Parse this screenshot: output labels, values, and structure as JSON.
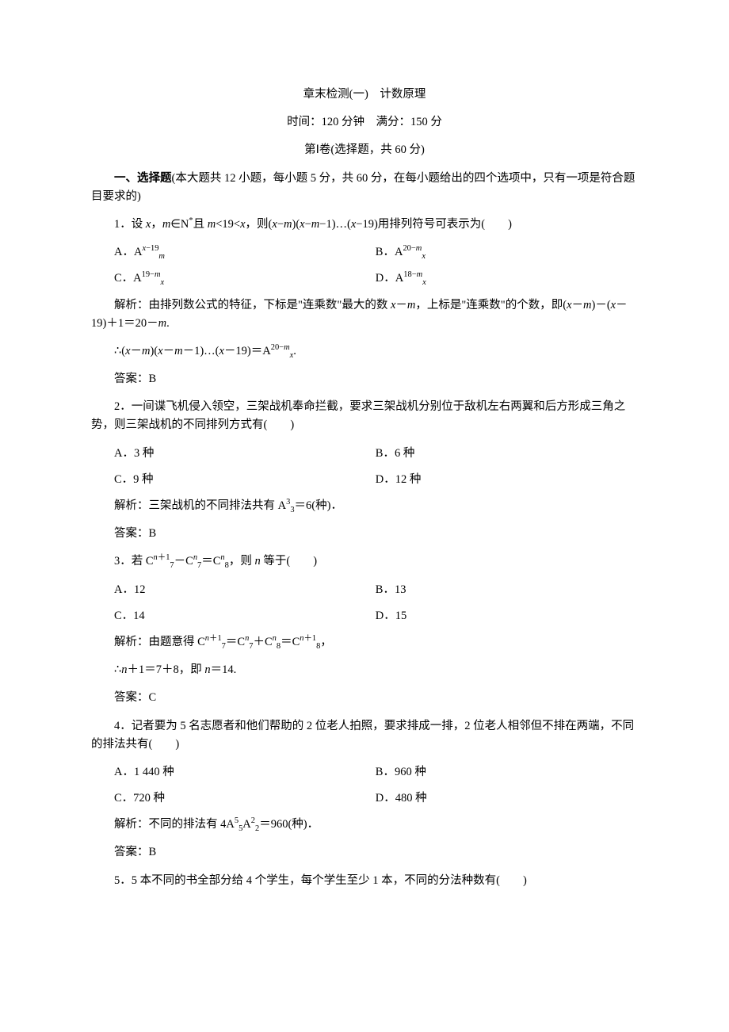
{
  "title": "章末检测(一)　计数原理",
  "subtitle": "时间：120 分钟　满分：150 分",
  "section_header": "第Ⅰ卷(选择题，共 60 分)",
  "section_intro_a": "一、选择题",
  "section_intro_b": "(本大题共 12 小题，每小题 5 分，共 60 分，在每小题给出的四个选项中，只有一项是符合题目要求的)",
  "q1": {
    "stem_a": "1．设 ",
    "x": "x",
    "stem_b": "，",
    "m": "m",
    "stem_c": "∈N",
    "star": "*",
    "stem_d": "且 ",
    "stem_e": "<19<",
    "stem_f": "，则(",
    "stem_g": "−",
    "stem_h": ")(",
    "stem_i": "−1)…(",
    "stem_j": "−19)用排列符号可表示为(　　)",
    "A_pre": "A．A",
    "A_sup_a": "x",
    "A_sup_b": "−19",
    "A_sub": "m",
    "B_pre": "B．A",
    "B_sup_a": "20−",
    "B_sup_b": "m",
    "B_sub": "x",
    "C_pre": "C．A",
    "C_sup_a": "19−",
    "C_sup_b": "m",
    "C_sub": "x",
    "D_pre": "D．A",
    "D_sup_a": "18−",
    "D_sup_b": "m",
    "D_sub": "x",
    "expl1_a": "解析：由排列数公式的特征，下标是\"连乘数\"最大的数 ",
    "expl1_b": "－",
    "expl1_c": "，上标是\"连乘数\"的个数，即(",
    "expl1_d": "－",
    "expl1_e": ")－(",
    "expl1_f": "－19)＋1＝20－",
    "expl1_g": ".",
    "expl2_a": "∴(",
    "expl2_b": "－",
    "expl2_c": ")(",
    "expl2_d": "－1)…(",
    "expl2_e": "－19)＝A",
    "ans": "答案：B"
  },
  "q2": {
    "stem": "2．一间谍飞机侵入领空，三架战机奉命拦截，要求三架战机分别位于敌机左右两翼和后方形成三角之势，则三架战机的不同排列方式有(　　)",
    "A": "A．3 种",
    "B": "B．6 种",
    "C": "C．9 种",
    "D": "D．12 种",
    "expl_a": "解析：三架战机的不同排法共有 A",
    "expl_sup": "3",
    "expl_sub": "3",
    "expl_b": "＝6(种)．",
    "ans": "答案：B"
  },
  "q3": {
    "stem_a": "3．若 C",
    "sup1a": "n",
    "sup1b": "＋1",
    "sub1": "7",
    "stem_b": "－C",
    "sup2": "n",
    "sub2": "7",
    "stem_c": "＝C",
    "sup3": "n",
    "sub3": "8",
    "stem_d": "，则 ",
    "stem_e": " 等于(　　)",
    "A": "A．12",
    "B": "B．13",
    "C": "C．14",
    "D": "D．15",
    "expl_a": "解析：由题意得 C",
    "expl_b": "＝C",
    "expl_c": "＋C",
    "expl_d": "＝C",
    "expl_sup4a": "n",
    "expl_sup4b": "＋1",
    "expl_sub4": "8",
    "expl_e": "，",
    "expl2_a": "∴",
    "expl2_b": "＋1＝7＋8，即 ",
    "expl2_c": "＝14.",
    "ans": "答案：C"
  },
  "q4": {
    "stem": "4．记者要为 5 名志愿者和他们帮助的 2 位老人拍照，要求排成一排，2 位老人相邻但不排在两端，不同的排法共有(　　)",
    "A": "A．1 440 种",
    "B": "B．960 种",
    "C": "C．720 种",
    "D": "D．480 种",
    "expl_a": "解析：不同的排法有 4A",
    "expl_sup1": "5",
    "expl_sub1": "5",
    "expl_b": "A",
    "expl_sup2": "2",
    "expl_sub2": "2",
    "expl_c": "＝960(种)．",
    "ans": "答案：B"
  },
  "q5": {
    "stem": "5．5 本不同的书全部分给 4 个学生，每个学生至少 1 本，不同的分法种数有(　　)"
  }
}
